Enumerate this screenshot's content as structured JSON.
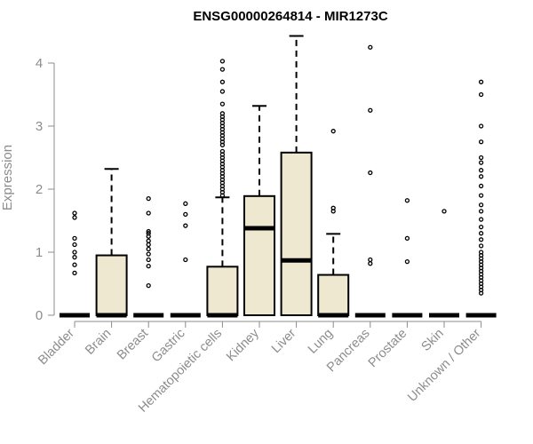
{
  "chart_data": {
    "type": "boxplot",
    "title": "ENSG00000264814 - MIR1273C",
    "ylabel": "Expression",
    "xlabel": "",
    "ylim": [
      0,
      4.5
    ],
    "yticks": [
      0,
      1,
      2,
      3,
      4
    ],
    "box_fill": "#efe8d0",
    "axis_color": "#8c8c8c",
    "categories": [
      "Bladder",
      "Brain",
      "Breast",
      "Gastric",
      "Hematopoietic cells",
      "Kidney",
      "Liver",
      "Lung",
      "Pancreas",
      "Prostate",
      "Skin",
      "Unknown / Other"
    ],
    "boxes": [
      {
        "q1": 0,
        "median": 0,
        "q3": 0,
        "whisker_low": 0,
        "whisker_high": 0,
        "outliers": [
          0.67,
          0.8,
          0.92,
          1.0,
          1.12,
          1.22,
          1.55,
          1.62
        ]
      },
      {
        "q1": 0,
        "median": 0,
        "q3": 0.95,
        "whisker_low": 0,
        "whisker_high": 2.32,
        "outliers": []
      },
      {
        "q1": 0,
        "median": 0,
        "q3": 0,
        "whisker_low": 0,
        "whisker_high": 0,
        "outliers": [
          0.47,
          0.78,
          0.88,
          0.97,
          1.05,
          1.12,
          1.18,
          1.25,
          1.3,
          1.33,
          1.62,
          1.85
        ]
      },
      {
        "q1": 0,
        "median": 0,
        "q3": 0,
        "whisker_low": 0,
        "whisker_high": 0,
        "outliers": [
          0.88,
          1.42,
          1.6,
          1.77
        ]
      },
      {
        "q1": 0,
        "median": 0,
        "q3": 0.77,
        "whisker_low": 0,
        "whisker_high": 1.87,
        "outliers": [
          1.9,
          1.95,
          2.0,
          2.05,
          2.1,
          2.15,
          2.2,
          2.25,
          2.3,
          2.35,
          2.4,
          2.45,
          2.5,
          2.55,
          2.6,
          2.7,
          2.75,
          2.8,
          2.85,
          2.9,
          2.95,
          3.0,
          3.05,
          3.1,
          3.15,
          3.2,
          3.35,
          3.55,
          3.7,
          3.9,
          4.03
        ]
      },
      {
        "q1": 0,
        "median": 1.38,
        "q3": 1.89,
        "whisker_low": 0,
        "whisker_high": 3.32,
        "outliers": []
      },
      {
        "q1": 0,
        "median": 0.87,
        "q3": 2.58,
        "whisker_low": 0,
        "whisker_high": 4.43,
        "outliers": []
      },
      {
        "q1": 0,
        "median": 0,
        "q3": 0.64,
        "whisker_low": 0,
        "whisker_high": 1.29,
        "outliers": [
          1.65,
          1.7,
          2.92
        ]
      },
      {
        "q1": 0,
        "median": 0,
        "q3": 0,
        "whisker_low": 0,
        "whisker_high": 0,
        "outliers": [
          0.82,
          0.88,
          2.26,
          3.25,
          4.25
        ]
      },
      {
        "q1": 0,
        "median": 0,
        "q3": 0,
        "whisker_low": 0,
        "whisker_high": 0,
        "outliers": [
          0.85,
          1.22,
          1.82
        ]
      },
      {
        "q1": 0,
        "median": 0,
        "q3": 0,
        "whisker_low": 0,
        "whisker_high": 0,
        "outliers": [
          1.65
        ]
      },
      {
        "q1": 0,
        "median": 0,
        "q3": 0,
        "whisker_low": 0,
        "whisker_high": 0,
        "outliers": [
          0.35,
          0.4,
          0.45,
          0.5,
          0.55,
          0.6,
          0.65,
          0.7,
          0.75,
          0.8,
          0.85,
          0.9,
          0.95,
          1.0,
          1.1,
          1.2,
          1.3,
          1.4,
          1.52,
          1.65,
          1.75,
          1.9,
          2.05,
          2.2,
          2.3,
          2.42,
          2.5,
          2.75,
          3.0,
          3.5,
          3.7
        ]
      }
    ]
  }
}
